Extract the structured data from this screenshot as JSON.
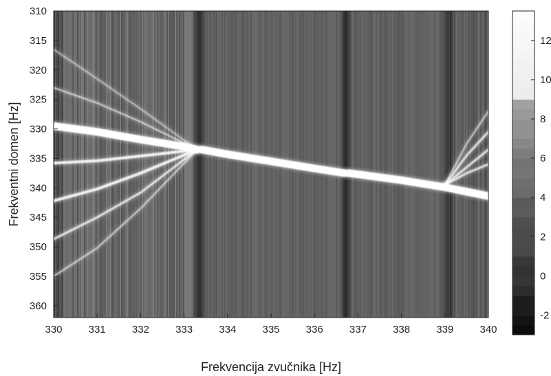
{
  "chart_data": {
    "type": "heatmap",
    "title": "",
    "xlabel": "Frekvencija zvučnika [Hz]",
    "ylabel": "Frekventni domen [Hz]",
    "xlim": [
      330,
      340
    ],
    "ylim": [
      362,
      310
    ],
    "x_ticks": [
      330,
      331,
      332,
      333,
      334,
      335,
      336,
      337,
      338,
      339,
      340
    ],
    "y_ticks": [
      310,
      315,
      320,
      325,
      330,
      335,
      340,
      345,
      350,
      355,
      360
    ],
    "colorbar": {
      "range": [
        -3,
        13.5
      ],
      "ticks": [
        -2,
        0,
        2,
        4,
        6,
        8,
        10,
        12
      ],
      "colormap": "gray"
    },
    "ridges": [
      {
        "x": [
          330,
          331,
          332,
          333,
          333.3
        ],
        "y": [
          329.5,
          330.5,
          331.8,
          333.0,
          333.5
        ],
        "level": 13
      },
      {
        "x": [
          333.4,
          334,
          335,
          336,
          336.7
        ],
        "y": [
          333.5,
          334.3,
          335.5,
          336.7,
          337.5
        ],
        "level": 13
      },
      {
        "x": [
          336.8,
          337,
          338,
          339,
          340
        ],
        "y": [
          337.5,
          337.7,
          338.7,
          339.9,
          341.4
        ],
        "level": 12
      },
      {
        "x": [
          330,
          331,
          332,
          333.3
        ],
        "y": [
          335.8,
          335.4,
          334.6,
          333.5
        ],
        "level": 9
      },
      {
        "x": [
          330,
          331,
          332,
          333.3
        ],
        "y": [
          342.2,
          340.2,
          337.5,
          333.5
        ],
        "level": 9
      },
      {
        "x": [
          330,
          331,
          332,
          333.3
        ],
        "y": [
          348.7,
          345.0,
          340.8,
          333.5
        ],
        "level": 8
      },
      {
        "x": [
          330,
          331,
          332,
          333.3
        ],
        "y": [
          355.0,
          350.2,
          343.5,
          333.5
        ],
        "level": 7
      },
      {
        "x": [
          330,
          331,
          332,
          333.3
        ],
        "y": [
          323.0,
          325.6,
          328.8,
          333.5
        ],
        "level": 7
      },
      {
        "x": [
          330,
          331,
          332,
          333.3
        ],
        "y": [
          316.5,
          321.5,
          326.6,
          333.5
        ],
        "level": 6
      },
      {
        "x": [
          339.0,
          339.5,
          340
        ],
        "y": [
          339.5,
          334.5,
          330.5
        ],
        "level": 8
      },
      {
        "x": [
          339.0,
          339.5,
          340
        ],
        "y": [
          339.5,
          336.5,
          333.5
        ],
        "level": 8
      },
      {
        "x": [
          339.0,
          339.5,
          340
        ],
        "y": [
          339.5,
          337.5,
          336.0
        ],
        "level": 8
      },
      {
        "x": [
          339.0,
          339.5,
          340
        ],
        "y": [
          339.5,
          332.5,
          327.0
        ],
        "level": 7
      }
    ]
  }
}
